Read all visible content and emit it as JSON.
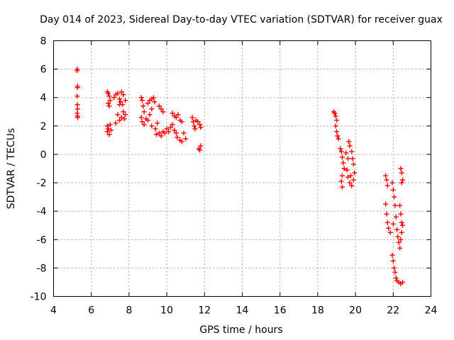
{
  "chart_data": {
    "type": "scatter",
    "title": "Day 014 of 2023, Sidereal Day-to-day VTEC variation (SDTVAR) for receiver guax",
    "xlabel": "GPS time / hours",
    "ylabel": "SDTVAR / TECUs",
    "xlim": [
      4,
      24
    ],
    "ylim": [
      -10,
      8
    ],
    "xticks": [
      4,
      6,
      8,
      10,
      12,
      14,
      16,
      18,
      20,
      22,
      24
    ],
    "yticks": [
      -10,
      -8,
      -6,
      -4,
      -2,
      0,
      2,
      4,
      6,
      8
    ],
    "grid": true,
    "marker": "+",
    "color": "#ff0000",
    "series": [
      {
        "name": "SDTVAR",
        "points": [
          [
            5.25,
            6.0
          ],
          [
            5.25,
            5.9
          ],
          [
            5.27,
            4.8
          ],
          [
            5.27,
            4.7
          ],
          [
            5.25,
            4.1
          ],
          [
            5.26,
            3.5
          ],
          [
            5.27,
            3.2
          ],
          [
            5.25,
            2.9
          ],
          [
            5.27,
            2.7
          ],
          [
            5.28,
            2.6
          ],
          [
            6.85,
            4.4
          ],
          [
            6.9,
            4.3
          ],
          [
            6.95,
            4.1
          ],
          [
            7.0,
            3.8
          ],
          [
            6.9,
            3.6
          ],
          [
            6.95,
            3.4
          ],
          [
            6.85,
            2.0
          ],
          [
            6.9,
            1.8
          ],
          [
            6.85,
            1.6
          ],
          [
            6.95,
            1.4
          ],
          [
            7.0,
            2.1
          ],
          [
            7.05,
            1.7
          ],
          [
            7.2,
            4.0
          ],
          [
            7.3,
            4.2
          ],
          [
            7.4,
            4.3
          ],
          [
            7.5,
            3.9
          ],
          [
            7.6,
            4.4
          ],
          [
            7.7,
            4.2
          ],
          [
            7.8,
            3.8
          ],
          [
            7.5,
            3.5
          ],
          [
            7.4,
            2.8
          ],
          [
            7.5,
            2.4
          ],
          [
            7.6,
            2.6
          ],
          [
            7.7,
            3.0
          ],
          [
            7.75,
            2.5
          ],
          [
            7.8,
            2.8
          ],
          [
            7.3,
            2.2
          ],
          [
            7.55,
            3.7
          ],
          [
            7.65,
            3.5
          ],
          [
            8.65,
            4.0
          ],
          [
            8.7,
            3.8
          ],
          [
            8.75,
            3.4
          ],
          [
            8.8,
            3.0
          ],
          [
            8.65,
            2.6
          ],
          [
            8.7,
            2.3
          ],
          [
            8.8,
            2.1
          ],
          [
            8.9,
            2.5
          ],
          [
            9.0,
            3.6
          ],
          [
            9.1,
            3.8
          ],
          [
            9.2,
            3.9
          ],
          [
            9.3,
            4.0
          ],
          [
            9.35,
            3.7
          ],
          [
            9.2,
            3.2
          ],
          [
            9.1,
            2.8
          ],
          [
            9.0,
            2.4
          ],
          [
            9.2,
            2.0
          ],
          [
            9.4,
            1.8
          ],
          [
            9.5,
            2.2
          ],
          [
            9.6,
            3.4
          ],
          [
            9.7,
            3.2
          ],
          [
            9.8,
            3.0
          ],
          [
            9.45,
            1.4
          ],
          [
            9.6,
            1.5
          ],
          [
            9.7,
            1.3
          ],
          [
            9.8,
            1.6
          ],
          [
            9.9,
            1.5
          ],
          [
            10.0,
            1.8
          ],
          [
            10.1,
            1.6
          ],
          [
            10.2,
            1.9
          ],
          [
            10.3,
            2.1
          ],
          [
            10.4,
            1.7
          ],
          [
            10.5,
            1.5
          ],
          [
            10.55,
            1.2
          ],
          [
            10.3,
            2.9
          ],
          [
            10.4,
            2.7
          ],
          [
            10.5,
            2.6
          ],
          [
            10.6,
            2.8
          ],
          [
            10.7,
            2.4
          ],
          [
            10.8,
            2.3
          ],
          [
            10.9,
            1.5
          ],
          [
            11.0,
            1.1
          ],
          [
            10.7,
            1.0
          ],
          [
            10.8,
            0.9
          ],
          [
            11.35,
            2.6
          ],
          [
            11.4,
            2.3
          ],
          [
            11.45,
            2.0
          ],
          [
            11.5,
            1.8
          ],
          [
            11.55,
            2.4
          ],
          [
            11.65,
            2.3
          ],
          [
            11.75,
            2.1
          ],
          [
            11.8,
            1.9
          ],
          [
            11.7,
            0.4
          ],
          [
            11.75,
            0.3
          ],
          [
            11.8,
            0.6
          ],
          [
            18.85,
            3.0
          ],
          [
            18.9,
            2.9
          ],
          [
            18.95,
            2.7
          ],
          [
            19.0,
            2.4
          ],
          [
            18.95,
            2.0
          ],
          [
            19.0,
            1.6
          ],
          [
            19.05,
            1.3
          ],
          [
            19.1,
            1.1
          ],
          [
            19.2,
            0.4
          ],
          [
            19.25,
            0.2
          ],
          [
            19.3,
            -0.2
          ],
          [
            19.35,
            -0.6
          ],
          [
            19.4,
            -1.0
          ],
          [
            19.3,
            -1.5
          ],
          [
            19.25,
            -1.9
          ],
          [
            19.3,
            -2.3
          ],
          [
            19.5,
            0.1
          ],
          [
            19.6,
            -0.3
          ],
          [
            19.55,
            -1.1
          ],
          [
            19.6,
            -1.6
          ],
          [
            19.7,
            -2.0
          ],
          [
            19.65,
            0.9
          ],
          [
            19.7,
            0.6
          ],
          [
            19.8,
            0.2
          ],
          [
            19.85,
            -0.3
          ],
          [
            19.9,
            -0.7
          ],
          [
            19.95,
            -1.3
          ],
          [
            19.9,
            -1.8
          ],
          [
            19.8,
            -2.2
          ],
          [
            19.75,
            -1.5
          ],
          [
            21.6,
            -1.5
          ],
          [
            21.65,
            -1.8
          ],
          [
            21.7,
            -2.2
          ],
          [
            21.6,
            -3.5
          ],
          [
            21.65,
            -4.2
          ],
          [
            21.7,
            -4.8
          ],
          [
            21.75,
            -5.2
          ],
          [
            21.85,
            -5.5
          ],
          [
            21.95,
            -2.0
          ],
          [
            22.0,
            -2.5
          ],
          [
            22.05,
            -3.0
          ],
          [
            22.1,
            -3.6
          ],
          [
            22.15,
            -4.4
          ],
          [
            22.0,
            -4.9
          ],
          [
            22.2,
            -5.3
          ],
          [
            22.25,
            -5.8
          ],
          [
            22.3,
            -6.2
          ],
          [
            22.35,
            -6.6
          ],
          [
            22.4,
            -6.0
          ],
          [
            22.45,
            -5.5
          ],
          [
            22.35,
            -3.6
          ],
          [
            22.4,
            -4.2
          ],
          [
            22.45,
            -4.8
          ],
          [
            22.5,
            -5.0
          ],
          [
            22.4,
            -1.0
          ],
          [
            22.45,
            -1.3
          ],
          [
            22.5,
            -1.8
          ],
          [
            22.45,
            -2.0
          ],
          [
            21.95,
            -7.1
          ],
          [
            22.0,
            -7.5
          ],
          [
            22.05,
            -8.0
          ],
          [
            22.1,
            -8.3
          ],
          [
            22.15,
            -8.7
          ],
          [
            22.2,
            -8.9
          ],
          [
            22.3,
            -9.0
          ],
          [
            22.4,
            -9.1
          ],
          [
            22.5,
            -9.0
          ]
        ]
      }
    ]
  }
}
